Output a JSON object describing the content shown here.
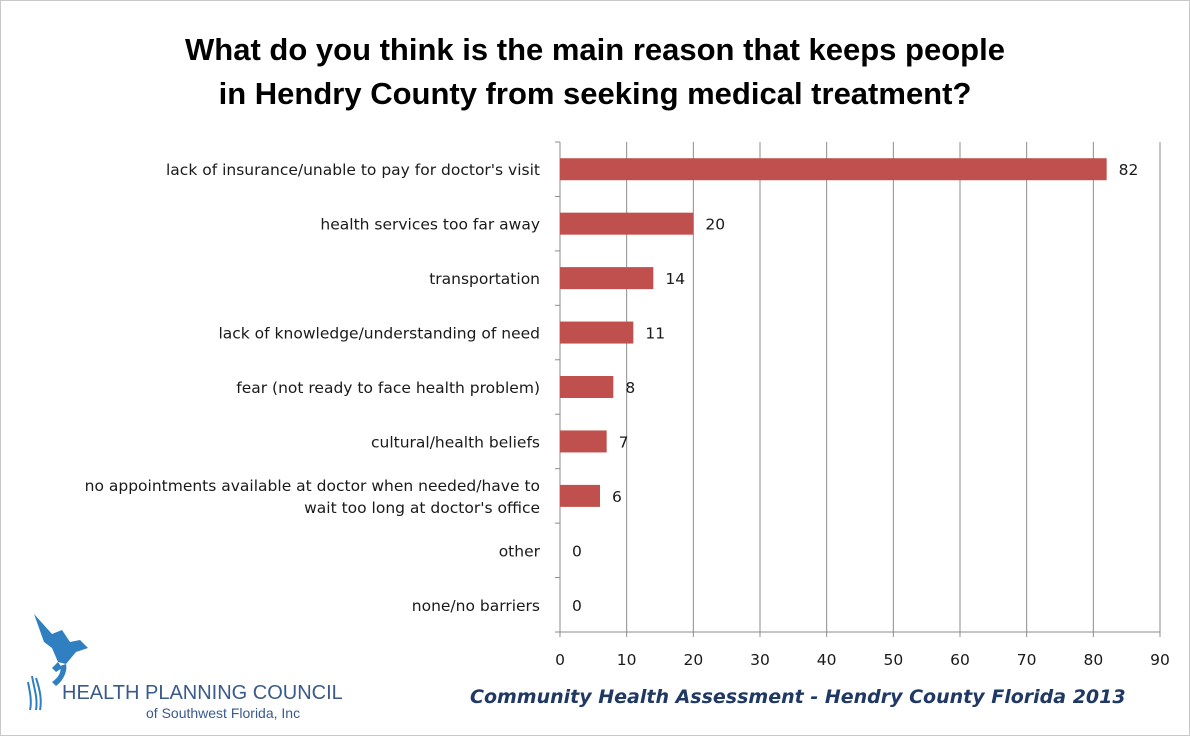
{
  "chart_data": {
    "type": "bar",
    "orientation": "horizontal",
    "title": "What do you think is the main reason that keeps people in Hendry County from seeking medical treatment?",
    "title_lines": [
      "What do you think is the main reason that keeps people",
      "in Hendry County from seeking medical treatment?"
    ],
    "categories": [
      [
        "lack of insurance/unable to pay for doctor's visit"
      ],
      [
        "health services too far away"
      ],
      [
        "transportation"
      ],
      [
        "lack of knowledge/understanding of need"
      ],
      [
        "fear (not ready to face health problem)"
      ],
      [
        "cultural/health beliefs"
      ],
      [
        "no appointments available at doctor when needed/have to",
        "wait too long at doctor's office"
      ],
      [
        "other"
      ],
      [
        "none/no barriers"
      ]
    ],
    "values": [
      82,
      20,
      14,
      11,
      8,
      7,
      6,
      0,
      0
    ],
    "xlim": [
      0,
      90
    ],
    "xticks": [
      0,
      10,
      20,
      30,
      40,
      50,
      60,
      70,
      80,
      90
    ],
    "grid": "vertical",
    "bar_color": "#c0504d",
    "data_labels": true
  },
  "footer": {
    "caption": "Community Health Assessment - Hendry County Florida 2013"
  },
  "logo": {
    "icon": "heron-icon",
    "line1": "HEALTH PLANNING COUNCIL",
    "line2": "of Southwest Florida, Inc",
    "color": "#3a5a8c"
  }
}
